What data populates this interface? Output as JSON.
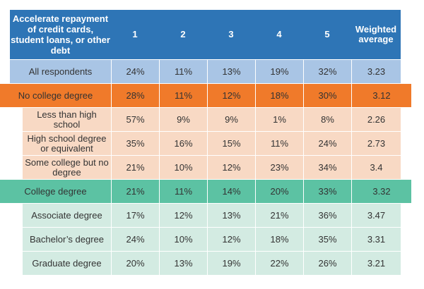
{
  "chart_data": {
    "type": "table",
    "header": [
      "Accelerate repayment of credit cards, student loans, or other debt",
      "1",
      "2",
      "3",
      "4",
      "5",
      "Weighted average"
    ],
    "rows": [
      {
        "label": "All respondents",
        "group": "all",
        "values": [
          "24%",
          "11%",
          "13%",
          "19%",
          "32%",
          "3.23"
        ]
      },
      {
        "label": "No college degree",
        "group": "no-college",
        "values": [
          "28%",
          "11%",
          "12%",
          "18%",
          "30%",
          "3.12"
        ]
      },
      {
        "label": "Less than high school",
        "group": "no-college-sub",
        "values": [
          "57%",
          "9%",
          "9%",
          "1%",
          "8%",
          "2.26"
        ]
      },
      {
        "label": "High school degree or equivalent",
        "group": "no-college-sub",
        "values": [
          "35%",
          "16%",
          "15%",
          "11%",
          "24%",
          "2.73"
        ]
      },
      {
        "label": "Some college but no degree",
        "group": "no-college-sub",
        "values": [
          "21%",
          "10%",
          "12%",
          "23%",
          "34%",
          "3.4"
        ]
      },
      {
        "label": "College degree",
        "group": "college",
        "values": [
          "21%",
          "11%",
          "14%",
          "20%",
          "33%",
          "3.32"
        ]
      },
      {
        "label": "Associate degree",
        "group": "college-sub",
        "values": [
          "17%",
          "12%",
          "13%",
          "21%",
          "36%",
          "3.47"
        ]
      },
      {
        "label": "Bachelor’s degree",
        "group": "college-sub",
        "values": [
          "24%",
          "10%",
          "12%",
          "18%",
          "35%",
          "3.31"
        ]
      },
      {
        "label": "Graduate degree",
        "group": "college-sub",
        "values": [
          "20%",
          "13%",
          "19%",
          "22%",
          "26%",
          "3.21"
        ]
      }
    ],
    "colors": {
      "header": "#2e75b6",
      "all": "#a9c5e5",
      "no-college": "#f07a2a",
      "no-college-sub": "#f8d9c4",
      "college": "#5cc2a3",
      "college-sub": "#d3ebe2"
    }
  }
}
